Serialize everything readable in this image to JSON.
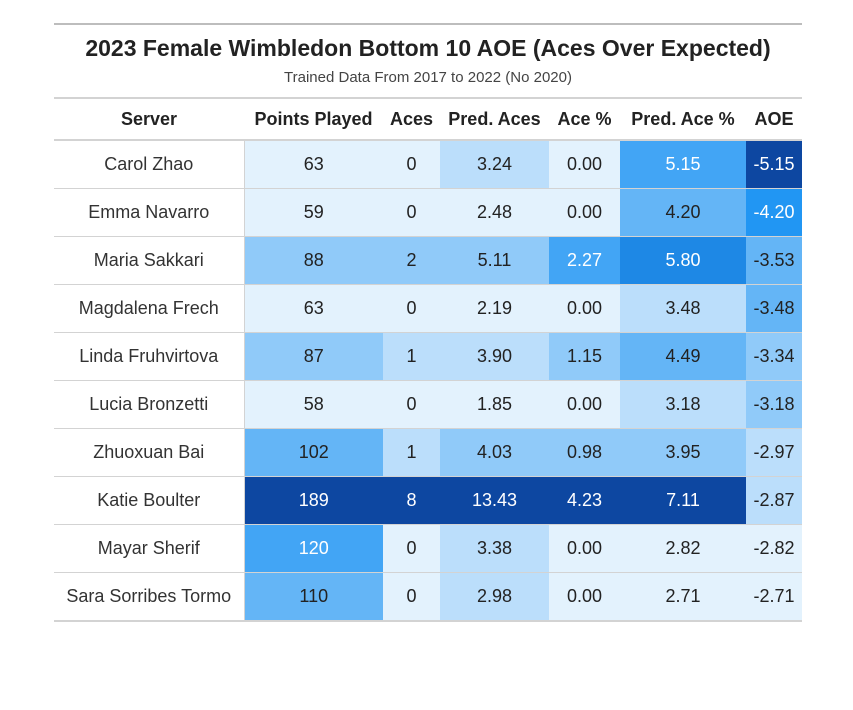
{
  "chart_data": {
    "type": "table",
    "title": "2023 Female Wimbledon Bottom 10 AOE (Aces Over Expected)",
    "subtitle": "Trained Data From 2017 to 2022 (No 2020)",
    "columns": [
      "Server",
      "Points Played",
      "Aces",
      "Pred. Aces",
      "Ace %",
      "Pred. Ace %",
      "AOE"
    ],
    "rows": [
      [
        "Carol Zhao",
        "63",
        "0",
        "3.24",
        "0.00",
        "5.15",
        "-5.15"
      ],
      [
        "Emma Navarro",
        "59",
        "0",
        "2.48",
        "0.00",
        "4.20",
        "-4.20"
      ],
      [
        "Maria Sakkari",
        "88",
        "2",
        "5.11",
        "2.27",
        "5.80",
        "-3.53"
      ],
      [
        "Magdalena Frech",
        "63",
        "0",
        "2.19",
        "0.00",
        "3.48",
        "-3.48"
      ],
      [
        "Linda Fruhvirtova",
        "87",
        "1",
        "3.90",
        "1.15",
        "4.49",
        "-3.34"
      ],
      [
        "Lucia Bronzetti",
        "58",
        "0",
        "1.85",
        "0.00",
        "3.18",
        "-3.18"
      ],
      [
        "Zhuoxuan Bai",
        "102",
        "1",
        "4.03",
        "0.98",
        "3.95",
        "-2.97"
      ],
      [
        "Katie Boulter",
        "189",
        "8",
        "13.43",
        "4.23",
        "7.11",
        "-2.87"
      ],
      [
        "Mayar Sherif",
        "120",
        "0",
        "3.38",
        "0.00",
        "2.82",
        "-2.82"
      ],
      [
        "Sara Sorribes Tormo",
        "110",
        "0",
        "2.98",
        "0.00",
        "2.71",
        "-2.71"
      ]
    ],
    "color_scale": {
      "colors": [
        "#e3f2fd",
        "#bbdefb",
        "#90caf9",
        "#64b5f6",
        "#42a5f5",
        "#2196f3",
        "#1e88e5",
        "#1565c0",
        "#0d47a1"
      ],
      "reverse_columns": [
        "AOE"
      ],
      "plain_columns": [
        "Server"
      ]
    }
  }
}
